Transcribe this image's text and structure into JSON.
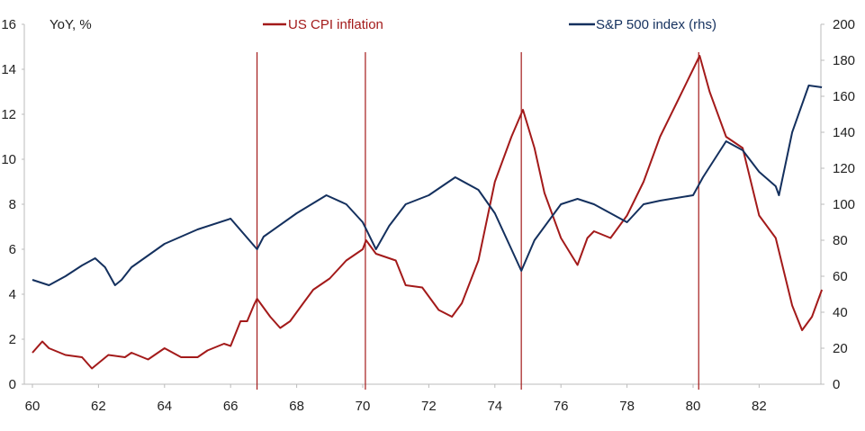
{
  "chart_data": {
    "type": "line",
    "ylabel": "YoY, %",
    "x_ticks": [
      "60",
      "62",
      "64",
      "66",
      "68",
      "70",
      "72",
      "74",
      "76",
      "78",
      "80",
      "82"
    ],
    "xlim": [
      60,
      83.95
    ],
    "y_left": {
      "lim": [
        0,
        16
      ],
      "ticks": [
        "0",
        "2",
        "4",
        "6",
        "8",
        "10",
        "12",
        "14",
        "16"
      ]
    },
    "y_right": {
      "lim": [
        0,
        200
      ],
      "ticks": [
        "0",
        "20",
        "40",
        "60",
        "80",
        "100",
        "120",
        "140",
        "160",
        "180",
        "200"
      ]
    },
    "legend": [
      "US CPI inflation",
      "S&P 500 index (rhs)"
    ],
    "legend_position": "top-center",
    "vertical_markers": [
      66.8,
      70.08,
      74.8,
      80.17
    ],
    "colors": {
      "cpi": "#a31a1a",
      "spx": "#14305e",
      "markers": "#a31a1a",
      "axis": "#bbbbbb"
    },
    "series": [
      {
        "name": "US CPI inflation",
        "axis": "left",
        "x": [
          60,
          60.3,
          60.5,
          61,
          61.5,
          61.8,
          62.3,
          62.8,
          63,
          63.5,
          64,
          64.5,
          65,
          65.3,
          65.8,
          66,
          66.3,
          66.5,
          66.7,
          66.8,
          67.2,
          67.5,
          67.8,
          68.2,
          68.5,
          69,
          69.5,
          70,
          70.1,
          70.4,
          71,
          71.3,
          71.8,
          72.3,
          72.7,
          73,
          73.5,
          74,
          74.5,
          74.85,
          75.2,
          75.5,
          76,
          76.5,
          76.8,
          77,
          77.5,
          78,
          78.5,
          79,
          79.5,
          80,
          80.2,
          80.5,
          81,
          81.5,
          82,
          82.5,
          83,
          83.3,
          83.6,
          83.9
        ],
        "y": [
          1.4,
          1.9,
          1.6,
          1.3,
          1.2,
          0.7,
          1.3,
          1.2,
          1.4,
          1.1,
          1.6,
          1.2,
          1.2,
          1.5,
          1.8,
          1.7,
          2.8,
          2.8,
          3.5,
          3.8,
          3.0,
          2.5,
          2.8,
          3.6,
          4.2,
          4.7,
          5.5,
          6.0,
          6.4,
          5.8,
          5.5,
          4.4,
          4.3,
          3.3,
          3.0,
          3.6,
          5.5,
          9.0,
          11.0,
          12.2,
          10.5,
          8.5,
          6.5,
          5.3,
          6.5,
          6.8,
          6.5,
          7.5,
          9.0,
          11.0,
          12.5,
          14.0,
          14.6,
          13.0,
          11.0,
          10.5,
          7.5,
          6.5,
          3.5,
          2.4,
          3.0,
          4.2
        ]
      },
      {
        "name": "S&P 500 index (rhs)",
        "axis": "right",
        "x": [
          60,
          60.5,
          61,
          61.5,
          61.9,
          62.2,
          62.5,
          62.7,
          63,
          64,
          65,
          66,
          66.8,
          67,
          68,
          68.9,
          69.5,
          70,
          70.4,
          70.8,
          71.3,
          72,
          72.8,
          73.5,
          74,
          74.5,
          74.8,
          75.2,
          76,
          76.5,
          77,
          77.5,
          78,
          78.5,
          79,
          80,
          80.3,
          81,
          81.5,
          82,
          82.5,
          82.6,
          83,
          83.5,
          83.9
        ],
        "y": [
          58,
          55,
          60,
          66,
          70,
          65,
          55,
          58,
          65,
          78,
          86,
          92,
          75,
          82,
          95,
          105,
          100,
          90,
          75,
          88,
          100,
          105,
          115,
          108,
          95,
          75,
          63,
          80,
          100,
          103,
          100,
          95,
          90,
          100,
          102,
          105,
          115,
          135,
          130,
          118,
          110,
          105,
          140,
          166,
          165
        ]
      }
    ]
  }
}
